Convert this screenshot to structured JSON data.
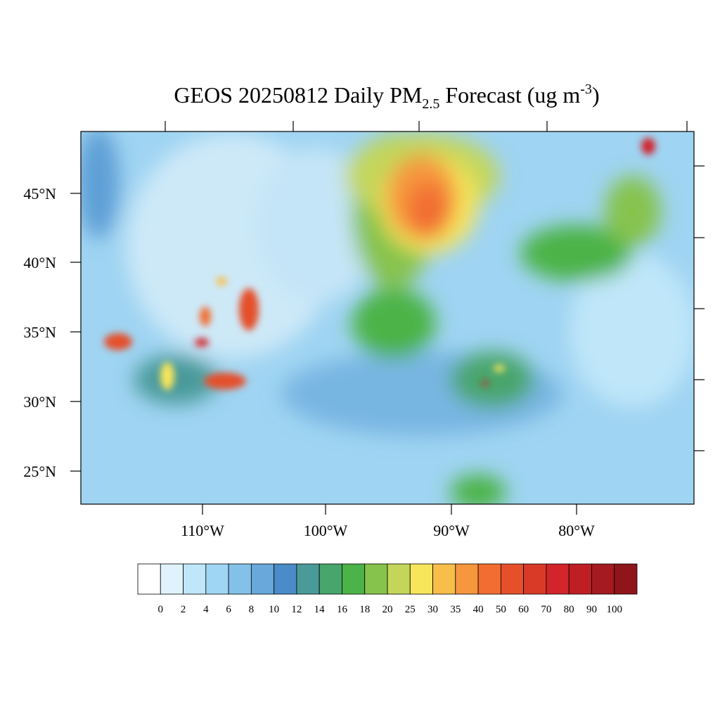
{
  "title": {
    "main": "GEOS 20250812 Daily PM",
    "subscript": "2.5",
    "rest": " Forecast (ug m",
    "superscript": "-3",
    "close": ")"
  },
  "latitude_labels": [
    "45°N",
    "40°N",
    "35°N",
    "30°N",
    "25°N"
  ],
  "longitude_labels": [
    "110°W",
    "100°W",
    "90°W",
    "80°W"
  ],
  "colorbar": {
    "labels": [
      "0",
      "2",
      "4",
      "6",
      "8",
      "10",
      "12",
      "14",
      "16",
      "18",
      "20",
      "25",
      "30",
      "35",
      "40",
      "50",
      "60",
      "70",
      "80",
      "90",
      "100"
    ],
    "colors": [
      "#ffffff",
      "#e0f3fc",
      "#bfe6f9",
      "#9fd6f4",
      "#83c1e8",
      "#68a8db",
      "#4a8bc8",
      "#4a9a9a",
      "#48a56c",
      "#4bb347",
      "#86c34d",
      "#c3d65a",
      "#f7e65a",
      "#f9be4a",
      "#f6963d",
      "#f26d30",
      "#e5502b",
      "#d93a28",
      "#d2242a",
      "#bf1e25",
      "#a51a20",
      "#8e1519"
    ]
  }
}
